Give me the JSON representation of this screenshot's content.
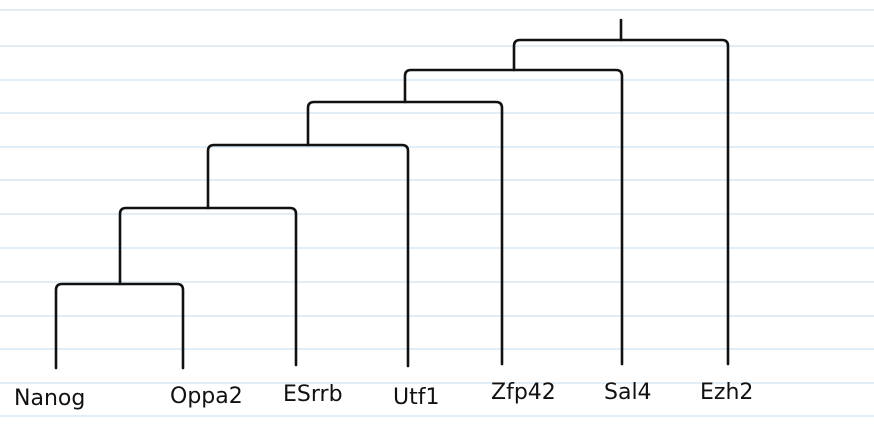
{
  "diagram": {
    "type": "dendrogram",
    "style": {
      "background_color": "#ffffff",
      "ruled_line_color": "#cfe3f3",
      "ink_color": "#111111"
    },
    "leaves": [
      {
        "id": "nanog",
        "label": "Nanog"
      },
      {
        "id": "oppa2",
        "label": "Oppa2"
      },
      {
        "id": "esrrb",
        "label": "ESrrb"
      },
      {
        "id": "utf1",
        "label": "Utf1"
      },
      {
        "id": "zfp42",
        "label": "Zfp42"
      },
      {
        "id": "sall4",
        "label": "Sal4"
      },
      {
        "id": "ezh2",
        "label": "Ezh2"
      }
    ],
    "merges": [
      {
        "id": "m1",
        "children": [
          "nanog",
          "oppa2"
        ],
        "order": 1
      },
      {
        "id": "m2",
        "children": [
          "m1",
          "esrrb"
        ],
        "order": 2
      },
      {
        "id": "m3",
        "children": [
          "m2",
          "utf1"
        ],
        "order": 3
      },
      {
        "id": "m4",
        "children": [
          "m3",
          "zfp42"
        ],
        "order": 4
      },
      {
        "id": "m5",
        "children": [
          "m4",
          "sall4"
        ],
        "order": 5
      },
      {
        "id": "m6",
        "children": [
          "m5",
          "ezh2"
        ],
        "order": 6
      }
    ]
  }
}
